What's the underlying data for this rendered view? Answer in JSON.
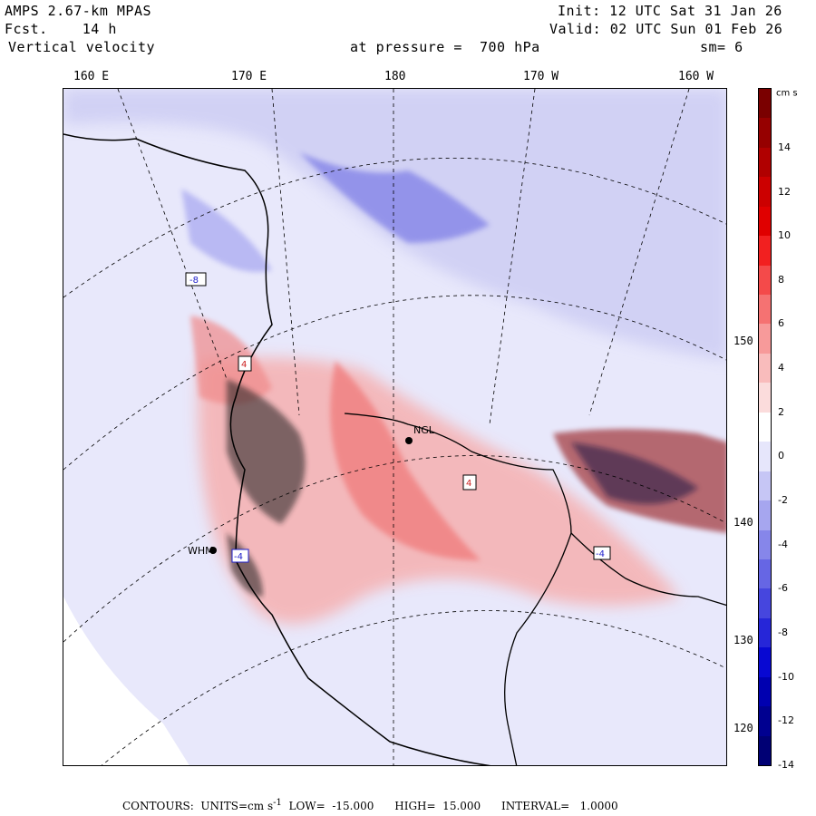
{
  "header": {
    "model": "AMPS 2.67-km MPAS",
    "fcst": "Fcst.    14 h",
    "field": "Vertical velocity",
    "pressure": "at pressure =  700 hPa",
    "init": "Init: 12 UTC Sat 31 Jan 26",
    "valid": "Valid: 02 UTC Sun 01 Feb 26",
    "smooth": "sm= 6"
  },
  "longitude_labels": [
    "160 E",
    "170 E",
    "180",
    "170 W",
    "160 W"
  ],
  "latitude_labels": [
    "150 W",
    "140 W",
    "130 W",
    "120 W"
  ],
  "stations": [
    {
      "label": "NGL"
    },
    {
      "label": "WHM"
    }
  ],
  "box_labels": [
    "-8",
    "4",
    "4",
    "-4",
    "-4"
  ],
  "colorbar": {
    "unit": "cm s",
    "unit_sup": "-1",
    "ticks": [
      "14",
      "12",
      "10",
      "8",
      "6",
      "4",
      "2",
      "0",
      "-2",
      "-4",
      "-6",
      "-8",
      "-10",
      "-12",
      "-14"
    ],
    "colors": [
      "#7a0000",
      "#960000",
      "#b00000",
      "#cc0000",
      "#e00000",
      "#f22020",
      "#f44a4a",
      "#f57272",
      "#f79a9a",
      "#f9bcbc",
      "#fbdcdc",
      "#ffffff",
      "#e6e6fb",
      "#c6c6f5",
      "#a6a6ef",
      "#8686ea",
      "#6666e4",
      "#4646de",
      "#2626d8",
      "#0808d2",
      "#0000b0",
      "#000090",
      "#000074"
    ]
  },
  "footer": {
    "text": "CONTOURS:  UNITS=cm s",
    "sup": "-1",
    "rest": "  LOW=  -15.000      HIGH=  15.000      INTERVAL=   1.0000"
  }
}
